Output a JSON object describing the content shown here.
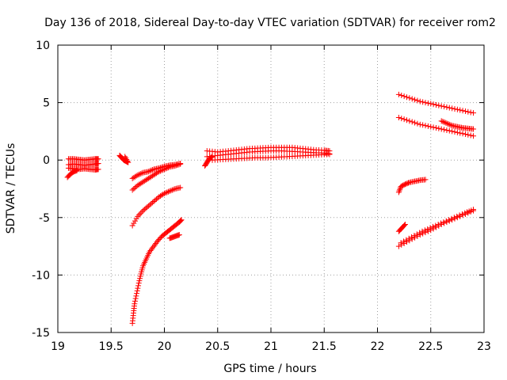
{
  "chart_data": {
    "type": "scatter",
    "title": "Day 136 of 2018, Sidereal Day-to-day VTEC variation (SDTVAR) for receiver rom2",
    "xlabel": "GPS time / hours",
    "ylabel": "SDTVAR / TECUs",
    "xlim": [
      19,
      23
    ],
    "ylim": [
      -15,
      10
    ],
    "xticks": [
      19,
      19.5,
      20,
      20.5,
      21,
      21.5,
      22,
      22.5,
      23
    ],
    "xtick_labels": [
      "19",
      "19.5",
      "20",
      "20.5",
      "21",
      "21.5",
      "22",
      "22.5",
      "23"
    ],
    "yticks": [
      -15,
      -10,
      -5,
      0,
      5,
      10
    ],
    "ytick_labels": [
      "-15",
      "-10",
      "-5",
      "0",
      "5",
      "10"
    ],
    "grid": true,
    "marker": "+",
    "color": "#ff0000",
    "series": [
      {
        "name": "seg-a1",
        "points": [
          [
            19.1,
            0.1
          ],
          [
            19.15,
            0.1
          ],
          [
            19.2,
            0.05
          ],
          [
            19.25,
            0.0
          ],
          [
            19.3,
            0.05
          ],
          [
            19.35,
            0.1
          ],
          [
            19.38,
            0.1
          ]
        ]
      },
      {
        "name": "seg-a2",
        "points": [
          [
            19.1,
            -0.4
          ],
          [
            19.15,
            -0.35
          ],
          [
            19.2,
            -0.4
          ],
          [
            19.25,
            -0.45
          ],
          [
            19.3,
            -0.4
          ],
          [
            19.35,
            -0.35
          ],
          [
            19.38,
            -0.3
          ]
        ]
      },
      {
        "name": "seg-a3",
        "points": [
          [
            19.1,
            -0.7
          ],
          [
            19.15,
            -0.75
          ],
          [
            19.2,
            -0.8
          ],
          [
            19.25,
            -0.75
          ],
          [
            19.3,
            -0.8
          ],
          [
            19.35,
            -0.85
          ],
          [
            19.38,
            -0.8
          ]
        ]
      },
      {
        "name": "seg-a4",
        "points": [
          [
            19.09,
            -1.5
          ],
          [
            19.12,
            -1.2
          ],
          [
            19.15,
            -1.0
          ],
          [
            19.18,
            -0.9
          ]
        ]
      },
      {
        "name": "seg-b",
        "points": [
          [
            19.58,
            0.4
          ],
          [
            19.6,
            0.2
          ],
          [
            19.62,
            0.0
          ],
          [
            19.64,
            -0.1
          ],
          [
            19.66,
            -0.2
          ],
          [
            19.63,
            0.3
          ]
        ]
      },
      {
        "name": "seg-c1",
        "points": [
          [
            19.7,
            -1.6
          ],
          [
            19.75,
            -1.3
          ],
          [
            19.8,
            -1.1
          ],
          [
            19.85,
            -1.0
          ],
          [
            19.9,
            -0.8
          ],
          [
            19.95,
            -0.7
          ],
          [
            20.0,
            -0.55
          ],
          [
            20.05,
            -0.45
          ],
          [
            20.1,
            -0.4
          ],
          [
            20.15,
            -0.3
          ]
        ]
      },
      {
        "name": "seg-c2",
        "points": [
          [
            19.7,
            -2.6
          ],
          [
            19.75,
            -2.2
          ],
          [
            19.8,
            -1.9
          ],
          [
            19.85,
            -1.6
          ],
          [
            19.9,
            -1.3
          ],
          [
            19.95,
            -1.0
          ],
          [
            20.0,
            -0.8
          ],
          [
            20.05,
            -0.6
          ],
          [
            20.1,
            -0.5
          ],
          [
            20.15,
            -0.35
          ]
        ]
      },
      {
        "name": "seg-c3",
        "points": [
          [
            19.7,
            -5.7
          ],
          [
            19.75,
            -4.9
          ],
          [
            19.8,
            -4.4
          ],
          [
            19.85,
            -4.0
          ],
          [
            19.9,
            -3.6
          ],
          [
            19.95,
            -3.2
          ],
          [
            20.0,
            -2.9
          ],
          [
            20.05,
            -2.7
          ],
          [
            20.1,
            -2.5
          ],
          [
            20.15,
            -2.4
          ]
        ]
      },
      {
        "name": "seg-c4",
        "points": [
          [
            19.7,
            -14.2
          ],
          [
            19.71,
            -13.3
          ],
          [
            19.72,
            -12.5
          ],
          [
            19.74,
            -11.6
          ],
          [
            19.76,
            -10.7
          ],
          [
            19.78,
            -9.9
          ],
          [
            19.8,
            -9.2
          ],
          [
            19.83,
            -8.6
          ],
          [
            19.86,
            -8.0
          ],
          [
            19.9,
            -7.5
          ],
          [
            19.94,
            -7.0
          ],
          [
            19.98,
            -6.6
          ],
          [
            20.02,
            -6.3
          ],
          [
            20.06,
            -6.0
          ],
          [
            20.1,
            -5.7
          ],
          [
            20.14,
            -5.4
          ],
          [
            20.16,
            -5.2
          ]
        ]
      },
      {
        "name": "seg-c5",
        "points": [
          [
            20.05,
            -6.8
          ],
          [
            20.08,
            -6.7
          ],
          [
            20.11,
            -6.6
          ],
          [
            20.14,
            -6.5
          ]
        ]
      },
      {
        "name": "seg-d1",
        "points": [
          [
            20.4,
            0.8
          ],
          [
            20.5,
            0.7
          ],
          [
            20.6,
            0.8
          ],
          [
            20.7,
            0.9
          ],
          [
            20.8,
            1.0
          ],
          [
            20.9,
            1.05
          ],
          [
            21.0,
            1.1
          ],
          [
            21.1,
            1.1
          ],
          [
            21.2,
            1.1
          ],
          [
            21.3,
            1.0
          ],
          [
            21.4,
            0.9
          ],
          [
            21.5,
            0.85
          ],
          [
            21.55,
            0.8
          ]
        ]
      },
      {
        "name": "seg-d2",
        "points": [
          [
            20.4,
            0.3
          ],
          [
            20.5,
            0.4
          ],
          [
            20.6,
            0.5
          ],
          [
            20.7,
            0.6
          ],
          [
            20.8,
            0.7
          ],
          [
            20.9,
            0.75
          ],
          [
            21.0,
            0.8
          ],
          [
            21.1,
            0.8
          ],
          [
            21.2,
            0.75
          ],
          [
            21.3,
            0.7
          ],
          [
            21.4,
            0.65
          ],
          [
            21.5,
            0.6
          ],
          [
            21.55,
            0.55
          ]
        ]
      },
      {
        "name": "seg-d3",
        "points": [
          [
            20.45,
            0.0
          ],
          [
            20.55,
            0.05
          ],
          [
            20.65,
            0.1
          ],
          [
            20.75,
            0.15
          ],
          [
            20.85,
            0.2
          ],
          [
            20.95,
            0.2
          ],
          [
            21.05,
            0.25
          ],
          [
            21.15,
            0.3
          ],
          [
            21.25,
            0.35
          ],
          [
            21.35,
            0.4
          ],
          [
            21.45,
            0.45
          ],
          [
            21.55,
            0.5
          ]
        ]
      },
      {
        "name": "seg-d4",
        "points": [
          [
            20.38,
            -0.5
          ],
          [
            20.4,
            -0.2
          ],
          [
            20.42,
            0.1
          ],
          [
            20.45,
            0.3
          ]
        ]
      },
      {
        "name": "seg-e1",
        "points": [
          [
            22.2,
            5.7
          ],
          [
            22.3,
            5.4
          ],
          [
            22.4,
            5.1
          ],
          [
            22.5,
            4.9
          ],
          [
            22.6,
            4.7
          ],
          [
            22.7,
            4.5
          ],
          [
            22.8,
            4.3
          ],
          [
            22.9,
            4.1
          ]
        ]
      },
      {
        "name": "seg-e2",
        "points": [
          [
            22.2,
            3.7
          ],
          [
            22.3,
            3.4
          ],
          [
            22.4,
            3.1
          ],
          [
            22.5,
            2.9
          ],
          [
            22.6,
            2.7
          ],
          [
            22.7,
            2.5
          ],
          [
            22.8,
            2.3
          ],
          [
            22.9,
            2.1
          ]
        ]
      },
      {
        "name": "seg-e3",
        "points": [
          [
            22.6,
            3.4
          ],
          [
            22.65,
            3.2
          ],
          [
            22.7,
            3.0
          ],
          [
            22.75,
            2.9
          ],
          [
            22.8,
            2.8
          ],
          [
            22.85,
            2.75
          ],
          [
            22.9,
            2.7
          ]
        ]
      },
      {
        "name": "seg-e4",
        "points": [
          [
            22.2,
            -2.8
          ],
          [
            22.22,
            -2.3
          ],
          [
            22.26,
            -2.1
          ],
          [
            22.3,
            -1.95
          ],
          [
            22.35,
            -1.85
          ],
          [
            22.4,
            -1.75
          ],
          [
            22.45,
            -1.7
          ]
        ]
      },
      {
        "name": "seg-e5",
        "points": [
          [
            22.2,
            -6.2
          ],
          [
            22.23,
            -5.9
          ],
          [
            22.26,
            -5.6
          ]
        ]
      },
      {
        "name": "seg-e6",
        "points": [
          [
            22.2,
            -7.5
          ],
          [
            22.3,
            -7.0
          ],
          [
            22.4,
            -6.5
          ],
          [
            22.5,
            -6.1
          ],
          [
            22.6,
            -5.6
          ],
          [
            22.7,
            -5.2
          ],
          [
            22.8,
            -4.8
          ],
          [
            22.9,
            -4.4
          ]
        ]
      },
      {
        "name": "seg-e7",
        "points": [
          [
            22.22,
            -7.2
          ],
          [
            22.32,
            -6.7
          ],
          [
            22.42,
            -6.2
          ],
          [
            22.52,
            -5.8
          ],
          [
            22.62,
            -5.4
          ],
          [
            22.72,
            -5.0
          ],
          [
            22.82,
            -4.6
          ],
          [
            22.9,
            -4.3
          ]
        ]
      }
    ]
  }
}
